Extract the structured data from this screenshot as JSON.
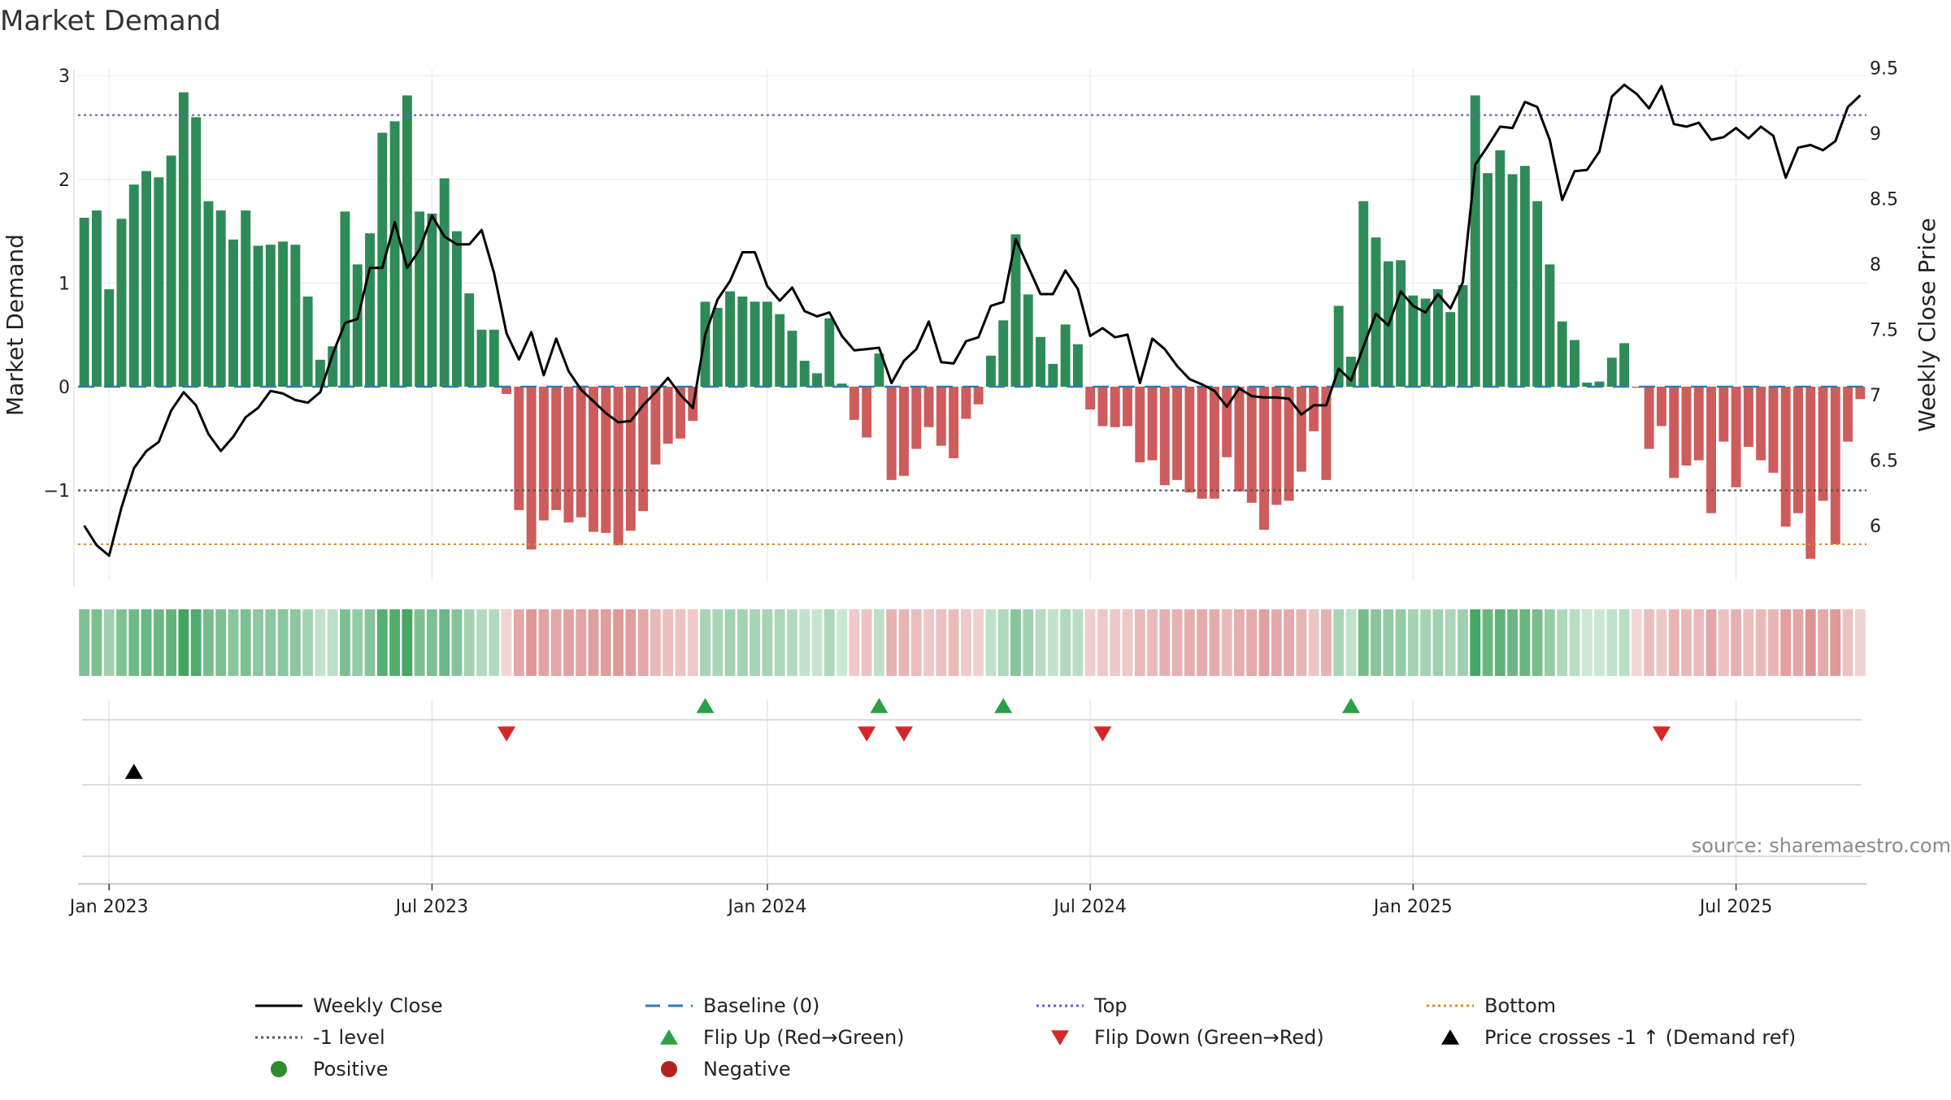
{
  "chart_data": {
    "type": "bar",
    "title": "Market Demand",
    "ylabel_left": "Market Demand",
    "ylabel_right": "Weekly Close Price",
    "y_left_range": [
      -1.9,
      3.0
    ],
    "y_right_range": [
      5.55,
      9.55
    ],
    "y_left_ticks": [
      {
        "value": 3,
        "label": "3"
      },
      {
        "value": 2,
        "label": "2"
      },
      {
        "value": 1,
        "label": "1"
      },
      {
        "value": 0,
        "label": "0"
      },
      {
        "value": -1,
        "label": "−1"
      }
    ],
    "y_right_ticks": [
      {
        "value": 9.5,
        "label": "9.5"
      },
      {
        "value": 9,
        "label": "9"
      },
      {
        "value": 8.5,
        "label": "8.5"
      },
      {
        "value": 8,
        "label": "8"
      },
      {
        "value": 7.5,
        "label": "7.5"
      },
      {
        "value": 7,
        "label": "7"
      },
      {
        "value": 6.5,
        "label": "6.5"
      },
      {
        "value": 6,
        "label": "6"
      }
    ],
    "x_ticks": [
      {
        "week": 2,
        "label": "Jan 2023"
      },
      {
        "week": 28,
        "label": "Jul 2023"
      },
      {
        "week": 55,
        "label": "Jan 2024"
      },
      {
        "week": 81,
        "label": "Jul 2024"
      },
      {
        "week": 107,
        "label": "Jan 2025"
      },
      {
        "week": 133,
        "label": "Jul 2025"
      }
    ],
    "series": [
      {
        "name": "Market Demand",
        "values": [
          1.63,
          1.7,
          0.94,
          1.62,
          1.95,
          2.08,
          2.02,
          2.23,
          2.84,
          2.6,
          1.79,
          1.7,
          1.42,
          1.7,
          1.36,
          1.37,
          1.4,
          1.37,
          0.87,
          0.26,
          0.39,
          1.69,
          1.18,
          1.48,
          2.45,
          2.56,
          2.81,
          1.69,
          1.67,
          2.01,
          1.5,
          0.9,
          0.55,
          0.55,
          -0.07,
          -1.19,
          -1.57,
          -1.29,
          -1.19,
          -1.31,
          -1.26,
          -1.4,
          -1.41,
          -1.53,
          -1.39,
          -1.2,
          -0.75,
          -0.55,
          -0.5,
          -0.33,
          0.82,
          0.76,
          0.92,
          0.87,
          0.82,
          0.82,
          0.7,
          0.54,
          0.25,
          0.13,
          0.66,
          0.03,
          -0.32,
          -0.49,
          0.32,
          -0.9,
          -0.86,
          -0.6,
          -0.39,
          -0.57,
          -0.69,
          -0.31,
          -0.17,
          0.3,
          0.64,
          1.47,
          0.89,
          0.48,
          0.22,
          0.6,
          0.41,
          -0.22,
          -0.38,
          -0.39,
          -0.38,
          -0.73,
          -0.71,
          -0.95,
          -0.9,
          -1.02,
          -1.08,
          -1.08,
          -0.68,
          -1.01,
          -1.12,
          -1.38,
          -1.14,
          -1.1,
          -0.82,
          -0.43,
          -0.9,
          0.78,
          0.29,
          1.79,
          1.44,
          1.21,
          1.22,
          0.88,
          0.85,
          0.94,
          0.72,
          0.98,
          2.81,
          2.06,
          2.28,
          2.05,
          2.13,
          1.79,
          1.18,
          0.63,
          0.45,
          0.04,
          0.05,
          0.28,
          0.42,
          -0.01,
          -0.6,
          -0.38,
          -0.88,
          -0.76,
          -0.71,
          -1.22,
          -0.53,
          -0.97,
          -0.58,
          -0.71,
          -0.83,
          -1.35,
          -1.22,
          -1.66,
          -1.1,
          -1.52,
          -0.53,
          -0.12
        ]
      },
      {
        "name": "Weekly Close",
        "values": [
          6.0,
          5.85,
          5.77,
          6.14,
          6.44,
          6.57,
          6.64,
          6.88,
          7.02,
          6.92,
          6.7,
          6.57,
          6.68,
          6.83,
          6.9,
          7.03,
          7.01,
          6.96,
          6.94,
          7.02,
          7.31,
          7.55,
          7.58,
          7.97,
          7.97,
          8.32,
          7.97,
          8.11,
          8.37,
          8.21,
          8.15,
          8.15,
          8.26,
          7.93,
          7.47,
          7.27,
          7.48,
          7.15,
          7.43,
          7.18,
          7.04,
          6.95,
          6.86,
          6.79,
          6.8,
          6.92,
          7.02,
          7.13,
          7.0,
          6.9,
          7.46,
          7.73,
          7.87,
          8.09,
          8.09,
          7.83,
          7.72,
          7.82,
          7.64,
          7.6,
          7.63,
          7.45,
          7.34,
          7.35,
          7.36,
          7.09,
          7.26,
          7.35,
          7.56,
          7.25,
          7.24,
          7.41,
          7.44,
          7.68,
          7.71,
          8.19,
          7.98,
          7.77,
          7.77,
          7.95,
          7.81,
          7.45,
          7.51,
          7.44,
          7.46,
          7.09,
          7.43,
          7.35,
          7.22,
          7.12,
          7.08,
          7.03,
          6.91,
          7.05,
          6.99,
          6.98,
          6.98,
          6.97,
          6.85,
          6.92,
          6.92,
          7.2,
          7.11,
          7.37,
          7.62,
          7.53,
          7.79,
          7.68,
          7.63,
          7.77,
          7.66,
          7.86,
          8.76,
          8.9,
          9.05,
          9.04,
          9.24,
          9.2,
          8.95,
          8.49,
          8.71,
          8.72,
          8.86,
          9.28,
          9.37,
          9.3,
          9.19,
          9.36,
          9.07,
          9.05,
          9.08,
          8.95,
          8.97,
          9.04,
          8.96,
          9.05,
          8.98,
          8.66,
          8.89,
          8.91,
          8.87,
          8.94,
          9.2,
          9.29
        ]
      }
    ],
    "reference_lines": [
      {
        "name": "Baseline (0)",
        "value": 0,
        "color": "#2c7bb6"
      },
      {
        "name": "Top",
        "value": 2.62,
        "color": "#6a5acd"
      },
      {
        "name": "-1 level",
        "value": -1,
        "color": "#555555"
      },
      {
        "name": "Bottom",
        "value": -1.52,
        "color": "#e08a1e"
      }
    ],
    "flip_up_weeks": [
      50,
      64,
      74,
      102
    ],
    "flip_down_weeks": [
      34,
      63,
      66,
      82,
      127
    ],
    "price_cross_weeks": [
      4
    ],
    "colors": {
      "positive": "#2e8b57",
      "negative": "#cd5c5c",
      "flip_up": "#2ca046",
      "flip_down": "#d62728",
      "cross": "#000000",
      "legend_positive": "#2e8b2e",
      "legend_negative": "#b22222"
    },
    "legend": [
      {
        "label": "Weekly Close",
        "kind": "solid-line",
        "color": "#000000"
      },
      {
        "label": "Baseline (0)",
        "kind": "dash-line",
        "color": "#2c7bb6"
      },
      {
        "label": "Top",
        "kind": "dot-line",
        "color": "#6a5acd"
      },
      {
        "label": "Bottom",
        "kind": "dot-line",
        "color": "#e08a1e"
      },
      {
        "label": "-1 level",
        "kind": "dot-line",
        "color": "#555555"
      },
      {
        "label": "Flip Up (Red→Green)",
        "kind": "tri-up",
        "color": "#2ca046"
      },
      {
        "label": "Flip Down (Green→Red)",
        "kind": "tri-down",
        "color": "#d62728"
      },
      {
        "label": "Price crosses -1 ↑ (Demand ref)",
        "kind": "tri-up",
        "color": "#000000"
      },
      {
        "label": "Positive",
        "kind": "dot",
        "color": "#2e8b2e"
      },
      {
        "label": "Negative",
        "kind": "dot",
        "color": "#b22222"
      }
    ],
    "source": "source: sharemaestro.com"
  }
}
